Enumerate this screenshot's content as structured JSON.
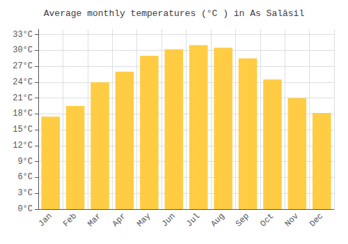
{
  "chart_data": {
    "type": "bar",
    "title": "Average monthly temperatures (°C ) in As Salāsil",
    "categories": [
      "Jan",
      "Feb",
      "Mar",
      "Apr",
      "May",
      "Jun",
      "Jul",
      "Aug",
      "Sep",
      "Oct",
      "Nov",
      "Dec"
    ],
    "values": [
      17.5,
      19.5,
      24.0,
      26.0,
      29.0,
      30.2,
      31.0,
      30.5,
      28.5,
      24.5,
      21.0,
      18.2
    ],
    "color": "#FFCC44",
    "ylim": [
      0,
      34
    ],
    "yticks": [
      {
        "value": 0,
        "label": "0°C"
      },
      {
        "value": 3,
        "label": "3°C"
      },
      {
        "value": 6,
        "label": "6°C"
      },
      {
        "value": 9,
        "label": "9°C"
      },
      {
        "value": 12,
        "label": "12°C"
      },
      {
        "value": 15,
        "label": "15°C"
      },
      {
        "value": 18,
        "label": "18°C"
      },
      {
        "value": 21,
        "label": "21°C"
      },
      {
        "value": 24,
        "label": "24°C"
      },
      {
        "value": 27,
        "label": "27°C"
      },
      {
        "value": 30,
        "label": "30°C"
      },
      {
        "value": 33,
        "label": "33°C"
      }
    ],
    "grid": true
  }
}
